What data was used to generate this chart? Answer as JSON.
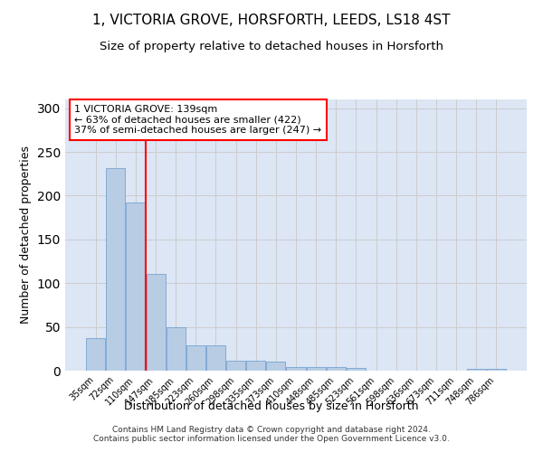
{
  "title": "1, VICTORIA GROVE, HORSFORTH, LEEDS, LS18 4ST",
  "subtitle": "Size of property relative to detached houses in Horsforth",
  "xlabel": "Distribution of detached houses by size in Horsforth",
  "ylabel": "Number of detached properties",
  "bar_labels": [
    "35sqm",
    "72sqm",
    "110sqm",
    "147sqm",
    "185sqm",
    "223sqm",
    "260sqm",
    "298sqm",
    "335sqm",
    "373sqm",
    "410sqm",
    "448sqm",
    "485sqm",
    "523sqm",
    "561sqm",
    "598sqm",
    "636sqm",
    "673sqm",
    "711sqm",
    "748sqm",
    "786sqm"
  ],
  "bar_values": [
    37,
    231,
    192,
    111,
    50,
    29,
    29,
    11,
    11,
    10,
    4,
    4,
    4,
    3,
    0,
    0,
    0,
    0,
    0,
    2,
    2
  ],
  "bar_color": "#b8cce4",
  "bar_edge_color": "#6699cc",
  "vline_color": "red",
  "annotation_text": "1 VICTORIA GROVE: 139sqm\n← 63% of detached houses are smaller (422)\n37% of semi-detached houses are larger (247) →",
  "annotation_box_color": "white",
  "annotation_box_edge_color": "red",
  "ylim": [
    0,
    310
  ],
  "yticks": [
    0,
    50,
    100,
    150,
    200,
    250,
    300
  ],
  "grid_color": "#cccccc",
  "bg_color": "#dce6f5",
  "footer": "Contains HM Land Registry data © Crown copyright and database right 2024.\nContains public sector information licensed under the Open Government Licence v3.0.",
  "title_fontsize": 11,
  "subtitle_fontsize": 9.5,
  "xlabel_fontsize": 9,
  "ylabel_fontsize": 9,
  "footer_fontsize": 6.5
}
